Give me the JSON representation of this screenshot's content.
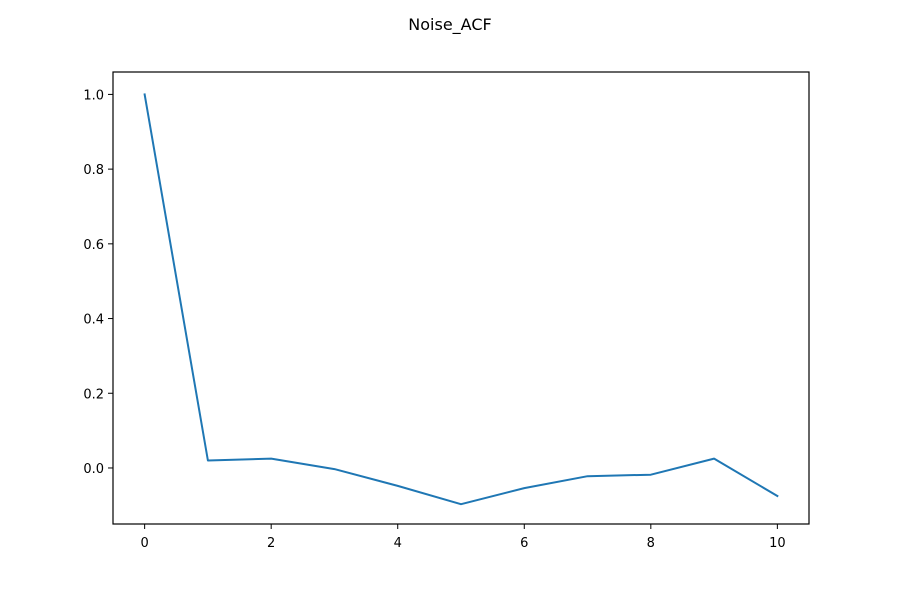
{
  "chart_data": {
    "type": "line",
    "title": "Noise_ACF",
    "xlabel": "",
    "ylabel": "",
    "xlim": [
      -0.5,
      10.5
    ],
    "ylim": [
      -0.15,
      1.06
    ],
    "xticks": [
      0,
      2,
      4,
      6,
      8,
      10
    ],
    "yticks": [
      0.0,
      0.2,
      0.4,
      0.6,
      0.8,
      1.0
    ],
    "xtick_labels": [
      "0",
      "2",
      "4",
      "6",
      "8",
      "10"
    ],
    "ytick_labels": [
      "0.0",
      "0.2",
      "0.4",
      "0.6",
      "0.8",
      "1.0"
    ],
    "grid": false,
    "legend": "none",
    "series": [
      {
        "color": "#1f77b4",
        "x": [
          0,
          1,
          2,
          3,
          4,
          5,
          6,
          7,
          8,
          9,
          10
        ],
        "y": [
          1.0,
          0.02,
          0.025,
          -0.003,
          -0.048,
          -0.097,
          -0.054,
          -0.022,
          -0.018,
          0.025,
          -0.075
        ]
      }
    ]
  }
}
